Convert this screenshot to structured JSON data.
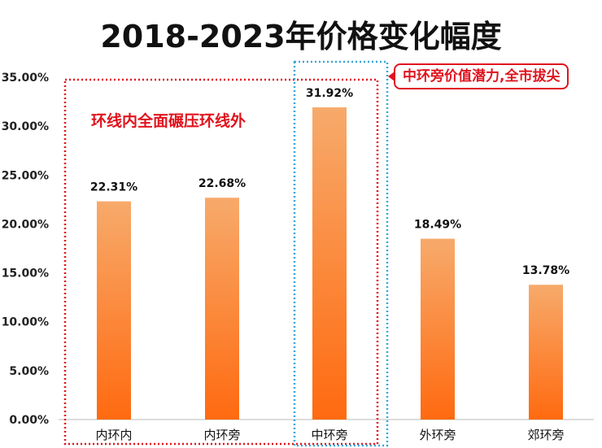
{
  "title": "2018-2023年价格变化幅度",
  "chart_data": {
    "type": "bar",
    "title": "2018-2023年价格变化幅度",
    "categories": [
      "内环内",
      "内环旁",
      "中环旁",
      "外环旁",
      "郊环旁"
    ],
    "values": [
      22.31,
      22.68,
      31.92,
      18.49,
      13.78
    ],
    "data_labels": [
      "22.31%",
      "22.68%",
      "31.92%",
      "18.49%",
      "13.78%"
    ],
    "ylim": [
      0,
      35
    ],
    "yticks": [
      "0.00%",
      "5.00%",
      "10.00%",
      "15.00%",
      "20.00%",
      "25.00%",
      "30.00%",
      "35.00%"
    ],
    "grid": false,
    "bar_gradient": [
      "#f7aa6b",
      "#ff6a10"
    ]
  },
  "annotations": {
    "left_group_label": "环线内全面碾压环线外",
    "callout": "中环旁价值潜力,全市拔尖"
  },
  "colors": {
    "highlight_red": "#e0141e",
    "highlight_blue": "#3aa6d8"
  }
}
